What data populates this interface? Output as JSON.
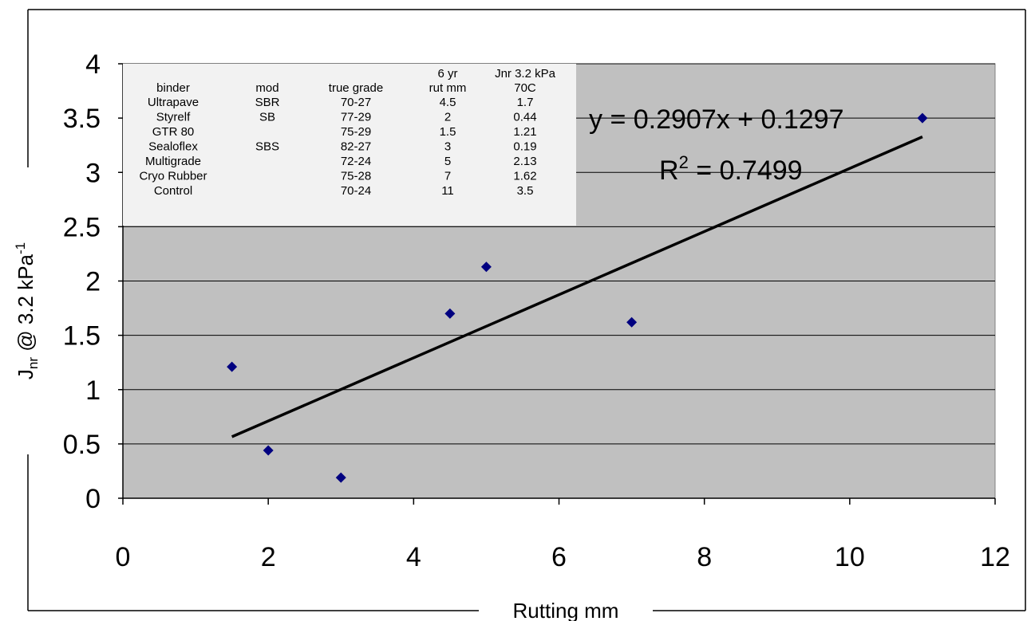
{
  "chart_data": {
    "type": "scatter",
    "xlabel": "Rutting mm",
    "ylabel_main": "J",
    "ylabel_sub": "nr",
    "ylabel_rest": " @ 3.2 kPa",
    "ylabel_sup": "-1",
    "xlim": [
      0,
      12
    ],
    "ylim": [
      0,
      4
    ],
    "xticks": [
      "0",
      "2",
      "4",
      "6",
      "8",
      "10",
      "12"
    ],
    "yticks": [
      "0",
      "0.5",
      "1",
      "1.5",
      "2",
      "2.5",
      "3",
      "3.5",
      "4"
    ],
    "grid": "horizontal",
    "plot_background": "#c0c0c0",
    "marker_color": "#000080",
    "series": [
      {
        "points": [
          {
            "x": 4.5,
            "y": 1.7
          },
          {
            "x": 2,
            "y": 0.44
          },
          {
            "x": 1.5,
            "y": 1.21
          },
          {
            "x": 3,
            "y": 0.19
          },
          {
            "x": 5,
            "y": 2.13
          },
          {
            "x": 7,
            "y": 1.62
          },
          {
            "x": 11,
            "y": 3.5
          }
        ]
      }
    ],
    "trendline": {
      "slope": 0.2907,
      "intercept": 0.1297,
      "x_range": [
        1.5,
        11
      ],
      "color": "#000000"
    },
    "annotations": {
      "equation": "y = 0.2907x + 0.1297",
      "r2_prefix": "R",
      "r2_sup": "2",
      "r2_rest": " = 0.7499"
    },
    "table": {
      "header_row1": [
        "",
        "",
        "",
        "6 yr",
        "Jnr 3.2 kPa"
      ],
      "header_row2": [
        "binder",
        "mod",
        "true grade",
        "rut mm",
        "70C"
      ],
      "rows": [
        [
          "Ultrapave",
          "SBR",
          "70-27",
          "4.5",
          "1.7"
        ],
        [
          "Styrelf",
          "SB",
          "77-29",
          "2",
          "0.44"
        ],
        [
          "GTR 80",
          "",
          "75-29",
          "1.5",
          "1.21"
        ],
        [
          "Sealoflex",
          "SBS",
          "82-27",
          "3",
          "0.19"
        ],
        [
          "Multigrade",
          "",
          "72-24",
          "5",
          "2.13"
        ],
        [
          "Cryo Rubber",
          "",
          "75-28",
          "7",
          "1.62"
        ],
        [
          "Control",
          "",
          "70-24",
          "11",
          "3.5"
        ]
      ]
    }
  }
}
